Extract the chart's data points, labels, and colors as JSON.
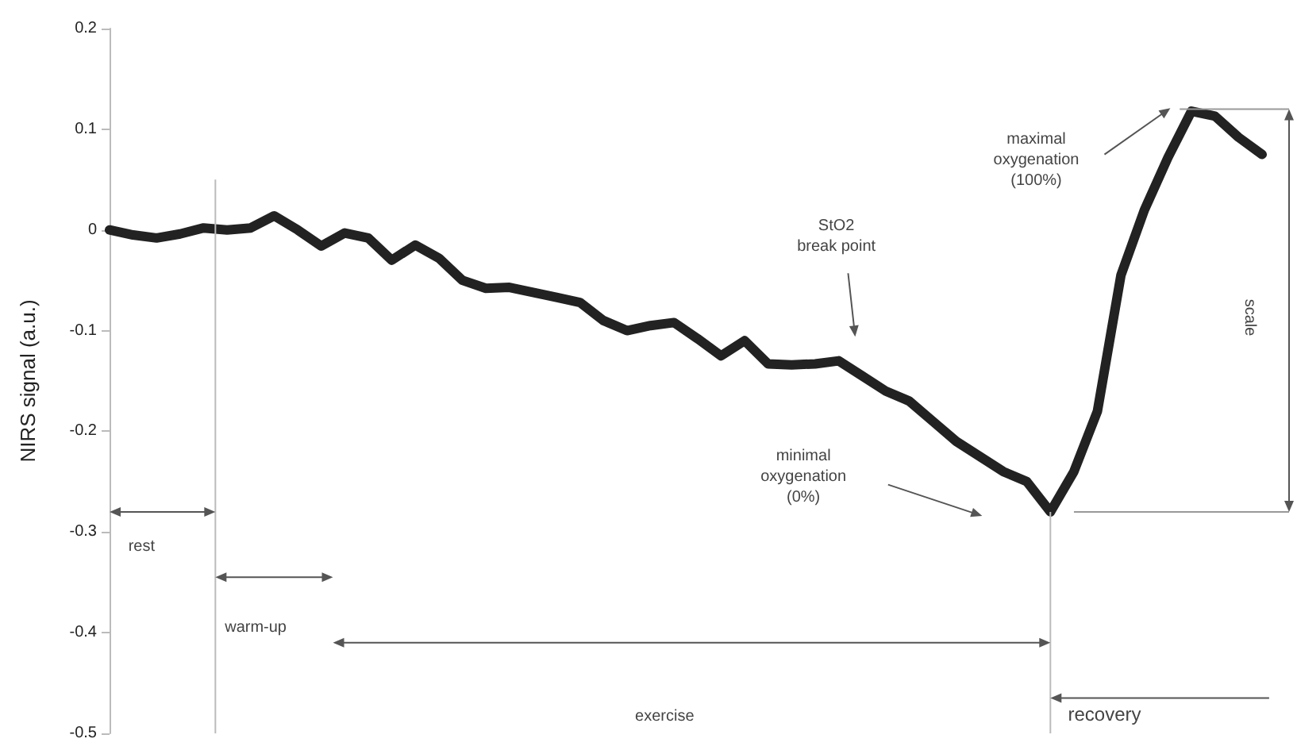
{
  "chart_data": {
    "type": "line",
    "ylabel": "NIRS signal (a.u.)",
    "categories": [
      null,
      null,
      null,
      null,
      null,
      null,
      null,
      null,
      null,
      null,
      null,
      null,
      null,
      null,
      null,
      null,
      null,
      null,
      null,
      null,
      null,
      null,
      null,
      null,
      null,
      null,
      null,
      null,
      null,
      null,
      null,
      null,
      null,
      null,
      null,
      null,
      null,
      null,
      null,
      null,
      null,
      null,
      null,
      null,
      null,
      null,
      null,
      null,
      null,
      null
    ],
    "series": [
      {
        "color": "#222222",
        "values": [
          0,
          -0.005,
          -0.008,
          -0.004,
          0.002,
          0,
          0.002,
          0.014,
          0,
          -0.016,
          -0.003,
          -0.008,
          -0.03,
          -0.015,
          -0.028,
          -0.05,
          -0.058,
          -0.057,
          -0.062,
          -0.067,
          -0.072,
          -0.09,
          -0.1,
          -0.095,
          -0.092,
          -0.108,
          -0.125,
          -0.11,
          -0.133,
          -0.134,
          -0.133,
          -0.13,
          -0.145,
          -0.16,
          -0.17,
          -0.19,
          -0.21,
          -0.225,
          -0.24,
          -0.25,
          -0.28,
          -0.24,
          -0.18,
          -0.045,
          0.02,
          0.072,
          0.118,
          0.113,
          0.092,
          0.075
        ]
      }
    ],
    "ylim": [
      -0.5,
      0.2
    ],
    "yticks": [
      0.2,
      0.1,
      0,
      -0.1,
      -0.2,
      -0.3,
      -0.4,
      -0.5
    ],
    "grid": false,
    "annotations": [
      "maximal\noxygenation\n(100%)",
      "StO2\nbreak point",
      "minimal\noxygenation\n(0%)",
      "scale",
      "rest",
      "warm-up",
      "exercise",
      "recovery"
    ]
  }
}
